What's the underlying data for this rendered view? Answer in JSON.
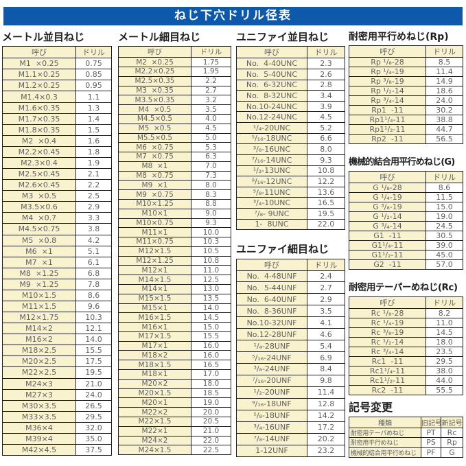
{
  "title": "ねじ下穴ドリル径表",
  "col_headers": {
    "name": "呼び",
    "drill": "ドリル"
  },
  "colors": {
    "banner_bg": "#0e59a9",
    "banner_text": "#ffffff",
    "cell_yellow": "#f8f2cf",
    "border": "#1c1c1c",
    "cell_text": "#5f5f5f"
  },
  "tables": {
    "metric_coarse": {
      "heading": "メートル並目ねじ",
      "rows": [
        [
          "M1  ×0.25",
          "0.75"
        ],
        [
          "M1.1×0.25",
          "0.85"
        ],
        [
          "M1.2×0.25",
          "0.95"
        ],
        [
          "M1.4×0.3",
          "1.1"
        ],
        [
          "M1.6×0.35",
          "1.3"
        ],
        [
          "M1.7×0.35",
          "1.4"
        ],
        [
          "M1.8×0.35",
          "1.5"
        ],
        [
          "M2  ×0.4",
          "1.6"
        ],
        [
          "M2.2×0.45",
          "1.8"
        ],
        [
          "M2.3×0.4",
          "1.9"
        ],
        [
          "M2.5×0.45",
          "2.1"
        ],
        [
          "M2.6×0.45",
          "2.2"
        ],
        [
          "M3  ×0.5",
          "2.5"
        ],
        [
          "M3.5×0.6",
          "2.9"
        ],
        [
          "M4  ×0.7",
          "3.3"
        ],
        [
          "M4.5×0.75",
          "3.8"
        ],
        [
          "M5  ×0.8",
          "4.2"
        ],
        [
          "M6  ×1",
          "5.1"
        ],
        [
          "M7  ×1",
          "6.1"
        ],
        [
          "M8  ×1.25",
          "6.8"
        ],
        [
          "M9  ×1.25",
          "7.8"
        ],
        [
          "M10×1.5",
          "8.6"
        ],
        [
          "M11×1.5",
          "9.6"
        ],
        [
          "M12×1.75",
          "10.3"
        ],
        [
          "M14×2",
          "12.1"
        ],
        [
          "M16×2",
          "14.0"
        ],
        [
          "M18×2.5",
          "15.5"
        ],
        [
          "M20×2.5",
          "17.5"
        ],
        [
          "M22×2.5",
          "19.5"
        ],
        [
          "M24×3",
          "21.0"
        ],
        [
          "M27×3",
          "24.0"
        ],
        [
          "M30×3.5",
          "26.5"
        ],
        [
          "M33×3.5",
          "29.5"
        ],
        [
          "M36×4",
          "32.0"
        ],
        [
          "M39×4",
          "35.0"
        ],
        [
          "M42×4.5",
          "37.5"
        ]
      ]
    },
    "metric_fine": {
      "heading": "メートル細目ねじ",
      "rows": [
        [
          "M2  ×0.25",
          "1.75"
        ],
        [
          "M2.2×0.25",
          "1.95"
        ],
        [
          "M2.5×0.35",
          "2.2"
        ],
        [
          "M3  ×0.35",
          "2.7"
        ],
        [
          "M3.5×0.35",
          "3.2"
        ],
        [
          "M4  ×0.5",
          "3.5"
        ],
        [
          "M4.5×0.5",
          "4.0"
        ],
        [
          "M5  ×0.5",
          "4.5"
        ],
        [
          "M5.5×0.5",
          "5.0"
        ],
        [
          "M6  ×0.75",
          "5.3"
        ],
        [
          "M7  ×0.75",
          "6.3"
        ],
        [
          "M8  ×1",
          "7.0"
        ],
        [
          "M8  ×0.75",
          "7.3"
        ],
        [
          "M9  ×1",
          "8.0"
        ],
        [
          "M9  ×0.75",
          "8.3"
        ],
        [
          "M10×1.25",
          "8.8"
        ],
        [
          "M10×1",
          "9.0"
        ],
        [
          "M10×0.75",
          "9.3"
        ],
        [
          "M11×1",
          "10.0"
        ],
        [
          "M11×0.75",
          "10.3"
        ],
        [
          "M12×1.5",
          "10.5"
        ],
        [
          "M12×1.25",
          "10.8"
        ],
        [
          "M12×1",
          "11.0"
        ],
        [
          "M14×1.5",
          "12.5"
        ],
        [
          "M14×1",
          "13.0"
        ],
        [
          "M15×1.5",
          "13.5"
        ],
        [
          "M15×1",
          "14.0"
        ],
        [
          "M16×1.5",
          "14.5"
        ],
        [
          "M16×1",
          "15.0"
        ],
        [
          "M17×1.5",
          "15.5"
        ],
        [
          "M17×1",
          "16.0"
        ],
        [
          "M18×2",
          "16.0"
        ],
        [
          "M18×1.5",
          "16.5"
        ],
        [
          "M18×1",
          "17.0"
        ],
        [
          "M20×2",
          "18.0"
        ],
        [
          "M20×1.5",
          "18.5"
        ],
        [
          "M20×1",
          "19.0"
        ],
        [
          "M22×2",
          "20.0"
        ],
        [
          "M22×1.5",
          "20.5"
        ],
        [
          "M22×1",
          "21.0"
        ],
        [
          "M24×2",
          "22.0"
        ],
        [
          "M24×1.5",
          "22.5"
        ]
      ]
    },
    "unified_coarse": {
      "heading": "ユニファイ並目ねじ",
      "rows": [
        [
          "No.  4-40UNC",
          "2.3"
        ],
        [
          "No.  5-40UNC",
          "2.6"
        ],
        [
          "No.  6-32UNC",
          "2.8"
        ],
        [
          "No.  8-32UNC",
          "3.4"
        ],
        [
          "No.10-24UNC",
          "3.9"
        ],
        [
          "No.12-24UNC",
          "4.5"
        ],
        [
          "¹/₄-20UNC",
          "5.2"
        ],
        [
          "⁵/₁₆-18UNC",
          "6.6"
        ],
        [
          "³/₈-16UNC",
          "8.0"
        ],
        [
          "⁷/₁₆-14UNC",
          "9.3"
        ],
        [
          "¹/₂-13UNC",
          "10.8"
        ],
        [
          "⁹/₁₆-12UNC",
          "12.2"
        ],
        [
          "⁵/₈-11UNC",
          "13.6"
        ],
        [
          "³/₄-10UNC",
          "16.5"
        ],
        [
          "⁷/₈- 9UNC",
          "19.5"
        ],
        [
          "1-  8UNC",
          "22.0"
        ]
      ]
    },
    "unified_fine": {
      "heading": "ユニファイ細目ねじ",
      "rows": [
        [
          "No.  4-48UNF",
          "2.4"
        ],
        [
          "No.  5-44UNF",
          "2.7"
        ],
        [
          "No.  6-40UNF",
          "2.9"
        ],
        [
          "No.  8-36UNF",
          "3.5"
        ],
        [
          "No.10-32UNF",
          "4.1"
        ],
        [
          "No.12-28UNF",
          "4.6"
        ],
        [
          "¹/₄-28UNF",
          "5.4"
        ],
        [
          "⁵/₁₆-24UNF",
          "6.9"
        ],
        [
          "³/₈-24UNF",
          "8.4"
        ],
        [
          "⁷/₁₆-20UNF",
          "9.8"
        ],
        [
          "¹/₂-20UNF",
          "11.4"
        ],
        [
          "⁹/₁₆-18UNF",
          "12.8"
        ],
        [
          "⁵/₈-18UNF",
          "14.2"
        ],
        [
          "³/₄-16UNF",
          "17.2"
        ],
        [
          "⁷/₈-14UNF",
          "20.2"
        ],
        [
          "1-12UNF",
          "23.2"
        ]
      ]
    },
    "rp": {
      "heading": "耐密用平行めねじ(Rp)",
      "rows": [
        [
          "Rp ¹/₈-28",
          "8.5"
        ],
        [
          "Rp ¹/₄-19",
          "11.4"
        ],
        [
          "Rp ³/₈-19",
          "14.9"
        ],
        [
          "Rp ¹/₂-14",
          "18.6"
        ],
        [
          "Rp ³/₄-14",
          "24.0"
        ],
        [
          "Rp1  -11",
          "30.2"
        ],
        [
          "Rp1¹/₄-11",
          "38.8"
        ],
        [
          "Rp1¹/₂-11",
          "44.7"
        ],
        [
          "Rp2  -11",
          "56.5"
        ]
      ]
    },
    "g": {
      "heading": "機械的結合用平行めねじ(G)",
      "rows": [
        [
          "G ¹/₈-28",
          "8.6"
        ],
        [
          "G ¹/₄-19",
          "11.5"
        ],
        [
          "G ³/₈-19",
          "15.0"
        ],
        [
          "G ¹/₂-14",
          "19.0"
        ],
        [
          "G ³/₄-14",
          "24.5"
        ],
        [
          "G1  -11",
          "30.5"
        ],
        [
          "G1¹/₄-11",
          "39.0"
        ],
        [
          "G1¹/₂-11",
          "45.0"
        ],
        [
          "G2  -11",
          "57.0"
        ]
      ]
    },
    "rc": {
      "heading": "耐密用テーパーめねじ(Rc)",
      "rows": [
        [
          "Rc ¹/₈-28",
          "8.2"
        ],
        [
          "Rc ¹/₄-19",
          "11.0"
        ],
        [
          "Rc ³/₈-19",
          "14.5"
        ],
        [
          "Rc ¹/₂-14",
          "18.0"
        ],
        [
          "Rc ³/₄-14",
          "23.5"
        ],
        [
          "Rc1  -11",
          "29.5"
        ],
        [
          "Rc1¹/₄-11",
          "38.0"
        ],
        [
          "Rc1¹/₂-11",
          "44.0"
        ],
        [
          "Rc2  -11",
          "55.5"
        ]
      ]
    },
    "symbol_change": {
      "heading": "記号変更",
      "headers": [
        "種類",
        "旧記号",
        "新記号"
      ],
      "rows": [
        [
          "耐密用テーパめねじ",
          "PT",
          "Rc"
        ],
        [
          "耐密用平行めねじ",
          "PS",
          "Rp"
        ],
        [
          "機械的結合用平行めねじ",
          "PF",
          "G"
        ]
      ]
    }
  }
}
